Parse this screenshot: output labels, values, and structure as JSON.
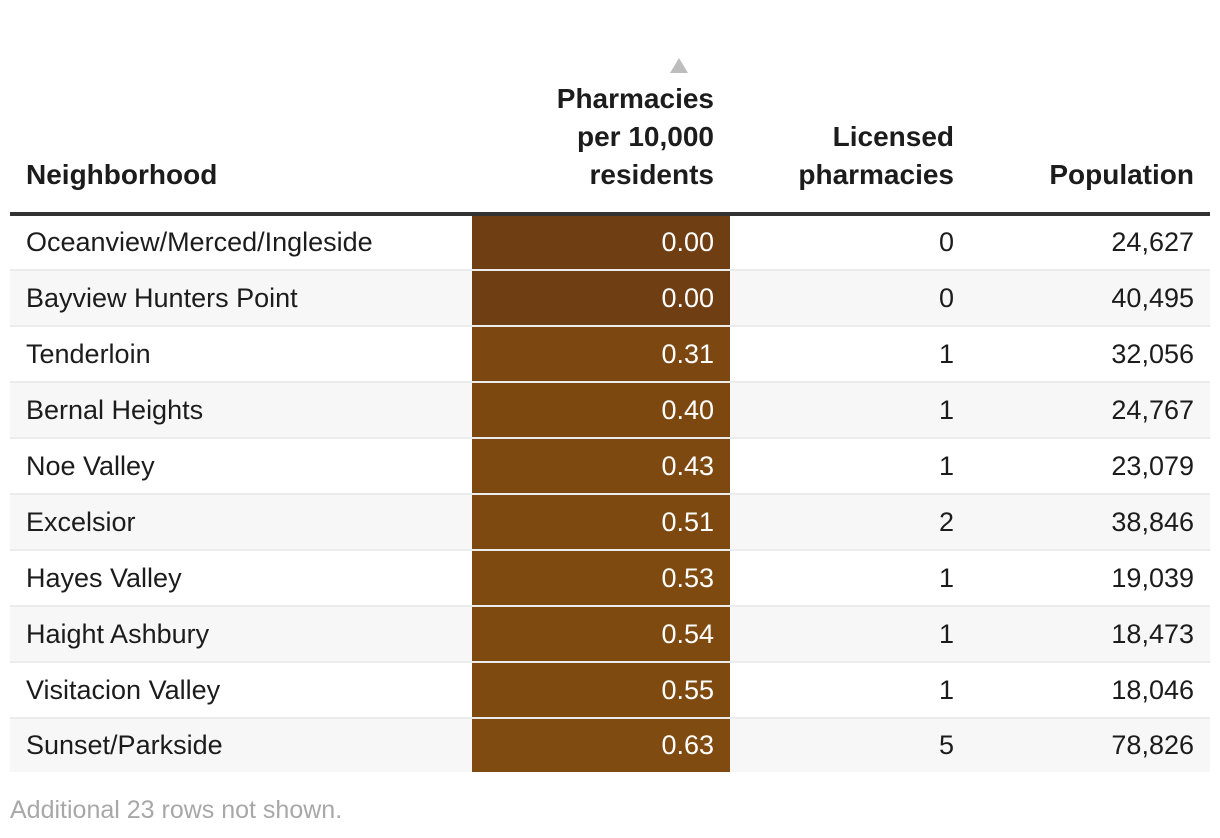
{
  "chart_data": {
    "type": "table",
    "columns": [
      "Neighborhood",
      "Pharmacies per 10,000 residents",
      "Licensed pharmacies",
      "Population"
    ],
    "header": {
      "neighborhood": "Neighborhood",
      "rate": "Pharmacies per 10,000 residents",
      "licensed": "Licensed pharmacies",
      "population": "Population"
    },
    "sorted_by": "Pharmacies per 10,000 residents",
    "sort_direction": "ascending",
    "rows": [
      {
        "neighborhood": "Oceanview/Merced/Ingleside",
        "rate": "0.00",
        "licensed": "0",
        "population": "24,627",
        "color": "#6f3e13"
      },
      {
        "neighborhood": "Bayview Hunters Point",
        "rate": "0.00",
        "licensed": "0",
        "population": "40,495",
        "color": "#6f3e13"
      },
      {
        "neighborhood": "Tenderloin",
        "rate": "0.31",
        "licensed": "1",
        "population": "32,056",
        "color": "#7c4710"
      },
      {
        "neighborhood": "Bernal Heights",
        "rate": "0.40",
        "licensed": "1",
        "population": "24,767",
        "color": "#7d4810"
      },
      {
        "neighborhood": "Noe Valley",
        "rate": "0.43",
        "licensed": "1",
        "population": "23,079",
        "color": "#7e4910"
      },
      {
        "neighborhood": "Excelsior",
        "rate": "0.51",
        "licensed": "2",
        "population": "38,846",
        "color": "#7e4910"
      },
      {
        "neighborhood": "Hayes Valley",
        "rate": "0.53",
        "licensed": "1",
        "population": "19,039",
        "color": "#7f4a10"
      },
      {
        "neighborhood": "Haight Ashbury",
        "rate": "0.54",
        "licensed": "1",
        "population": "18,473",
        "color": "#7f4a10"
      },
      {
        "neighborhood": "Visitacion Valley",
        "rate": "0.55",
        "licensed": "1",
        "population": "18,046",
        "color": "#7f4a10"
      },
      {
        "neighborhood": "Sunset/Parkside",
        "rate": "0.63",
        "licensed": "5",
        "population": "78,826",
        "color": "#804b10"
      }
    ],
    "footnote": "Additional 23 rows not shown."
  },
  "colors": {
    "header_rule": "#333333",
    "row_stripe": "#f7f7f7",
    "footnote_text": "#a8a8a8"
  },
  "icons": {
    "sort": "sort-ascending-icon"
  }
}
